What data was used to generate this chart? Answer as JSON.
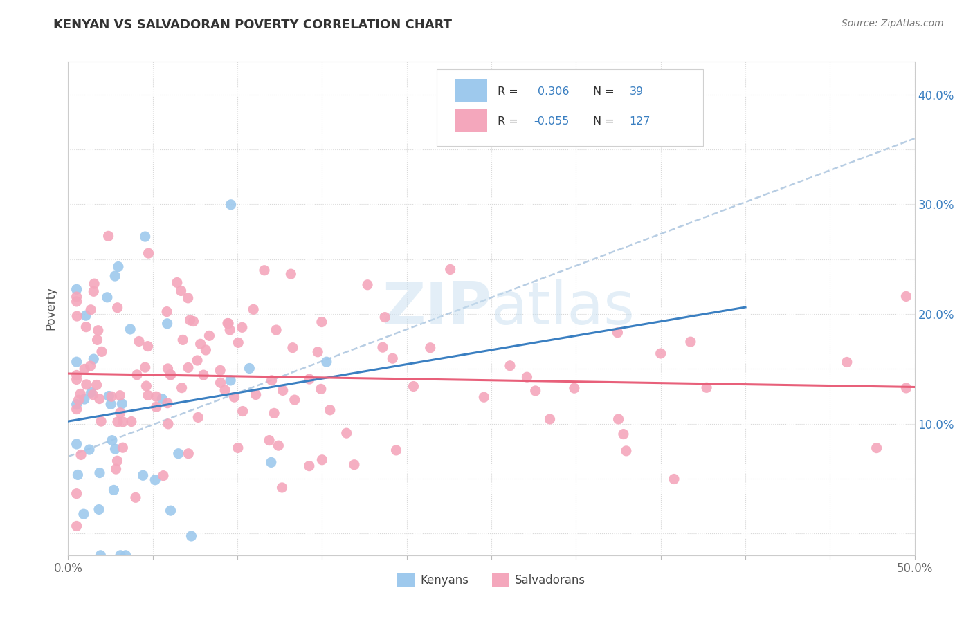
{
  "title": "KENYAN VS SALVADORAN POVERTY CORRELATION CHART",
  "source": "Source: ZipAtlas.com",
  "ylabel": "Poverty",
  "xlim": [
    0.0,
    0.5
  ],
  "ylim": [
    -0.02,
    0.43
  ],
  "plot_ylim": [
    -0.02,
    0.43
  ],
  "xtick_vals": [
    0.0,
    0.05,
    0.1,
    0.15,
    0.2,
    0.25,
    0.3,
    0.35,
    0.4,
    0.45,
    0.5
  ],
  "ytick_vals": [
    0.0,
    0.05,
    0.1,
    0.15,
    0.2,
    0.25,
    0.3,
    0.35,
    0.4
  ],
  "kenyan_R": 0.306,
  "kenyan_N": 39,
  "salvadoran_R": -0.055,
  "salvadoran_N": 127,
  "kenyan_color": "#9ec9ed",
  "salvadoran_color": "#f4a7bc",
  "kenyan_line_color": "#3a7fc1",
  "salvadoran_line_color": "#e8607a",
  "trend_line_color": "#b0c8e0",
  "background_color": "#ffffff",
  "grid_color": "#d8d8d8",
  "watermark": "ZIPatlas",
  "legend_R1": "0.306",
  "legend_N1": "39",
  "legend_R2": "-0.055",
  "legend_N2": "127",
  "legend_color": "#3a7fc1"
}
